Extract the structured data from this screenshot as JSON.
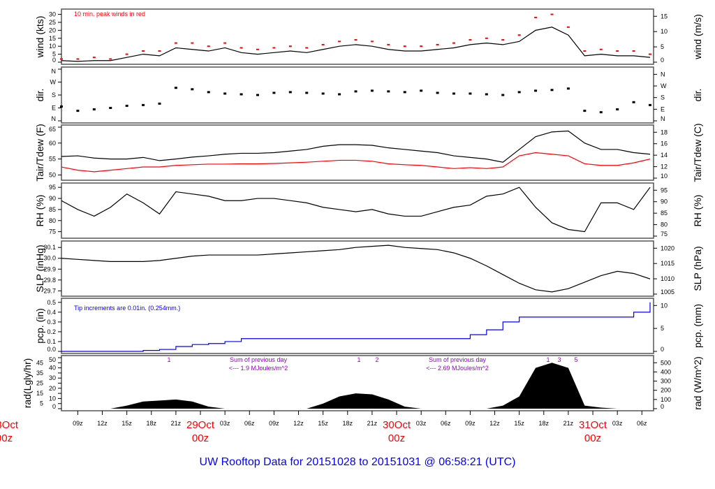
{
  "title": "UW Rooftop Data for 20151028  to  20151031 @ 06:58:21  (UTC)",
  "x": [
    "28Oct 07z",
    "28Oct 09z",
    "28Oct 11z",
    "28Oct 13z",
    "28Oct 15z",
    "28Oct 17z",
    "28Oct 19z",
    "28Oct 21z",
    "28Oct 23z",
    "29Oct 01z",
    "29Oct 03z",
    "29Oct 05z",
    "29Oct 07z",
    "29Oct 09z",
    "29Oct 11z",
    "29Oct 13z",
    "29Oct 15z",
    "29Oct 17z",
    "29Oct 19z",
    "29Oct 21z",
    "29Oct 23z",
    "30Oct 01z",
    "30Oct 03z",
    "30Oct 05z",
    "30Oct 07z",
    "30Oct 09z",
    "30Oct 11z",
    "30Oct 13z",
    "30Oct 15z",
    "30Oct 17z",
    "30Oct 19z",
    "30Oct 21z",
    "30Oct 23z",
    "31Oct 01z",
    "31Oct 03z",
    "31Oct 05z",
    "31Oct 07z"
  ],
  "x_ticks": [
    "09z",
    "12z",
    "15z",
    "18z",
    "21z",
    "",
    "03z",
    "06z",
    "09z",
    "12z",
    "15z",
    "18z",
    "21z",
    "",
    "03z",
    "06z",
    "09z",
    "12z",
    "15z",
    "18z",
    "21z",
    "",
    "03z",
    "06z"
  ],
  "day_labels": [
    {
      "date": "28Oct",
      "hour": "00z"
    },
    {
      "date": "29Oct",
      "hour": "00z"
    },
    {
      "date": "30Oct",
      "hour": "00z"
    },
    {
      "date": "31Oct",
      "hour": "00z"
    }
  ],
  "colors": {
    "series": "#000000",
    "peak": "#ff0000",
    "dew": "#ff0000",
    "precip": "#0000ff",
    "annotation": "#9900cc",
    "day_label": "#ff0000",
    "title": "#0000ff"
  },
  "chart_data": [
    {
      "type": "line",
      "ylabel": "wind (kts)",
      "ylabel_right": "wind (m/s)",
      "ylim": [
        0,
        32
      ],
      "yticks": [
        "0",
        "5",
        "10",
        "15",
        "20",
        "25",
        "30"
      ],
      "yticks_right": [
        "0",
        "5",
        "10",
        "15"
      ],
      "note": "10 min. peak winds in red",
      "series": [
        {
          "values": [
            1,
            0.5,
            1,
            1,
            3,
            5,
            4,
            9,
            8,
            7,
            9,
            6,
            5,
            6,
            7,
            6,
            8,
            10,
            11,
            10,
            8,
            7,
            7,
            8,
            9,
            11,
            12,
            11,
            13,
            20,
            22,
            17,
            4,
            5,
            4,
            4,
            3
          ]
        },
        {
          "values": [
            2,
            2,
            3,
            2,
            5,
            7,
            7,
            12,
            12,
            10,
            12,
            9,
            8,
            9,
            10,
            9,
            11,
            13,
            14,
            13,
            11,
            10,
            10,
            11,
            12,
            14,
            15,
            14,
            17,
            28,
            30,
            22,
            7,
            8,
            7,
            7,
            5
          ]
        }
      ]
    },
    {
      "type": "scatter",
      "ylabel": "dir.",
      "ylabel_right": "dir.",
      "ylim": [
        0,
        360
      ],
      "yticks": [
        "N",
        "E",
        "S",
        "W",
        "N"
      ],
      "yticks_right": [
        "N",
        "E",
        "S",
        "W",
        "N"
      ],
      "values": [
        100,
        70,
        80,
        90,
        105,
        110,
        120,
        230,
        220,
        200,
        190,
        185,
        180,
        195,
        200,
        195,
        190,
        185,
        205,
        210,
        205,
        200,
        210,
        195,
        190,
        190,
        185,
        180,
        200,
        210,
        215,
        225,
        70,
        60,
        80,
        130,
        110
      ]
    },
    {
      "type": "line",
      "ylabel": "Tair/Tdew (F)",
      "ylabel_right": "Tair/Tdew (C)",
      "ylim": [
        49,
        65
      ],
      "yticks": [
        "50",
        "55",
        "60",
        "65"
      ],
      "yticks_right": [
        "10",
        "12",
        "14",
        "16",
        "18"
      ],
      "series": [
        {
          "values": [
            55.8,
            56,
            55.3,
            55,
            55,
            55.5,
            54.5,
            55,
            55.6,
            56,
            56.5,
            56.8,
            56.8,
            57,
            57.5,
            58,
            59,
            59.5,
            59.5,
            59.3,
            58.5,
            58,
            57.5,
            57,
            56,
            55.5,
            55,
            54,
            58,
            62,
            63.5,
            63.8,
            60,
            58,
            58,
            57,
            56.5
          ]
        },
        {
          "values": [
            52.5,
            51.5,
            51,
            51.5,
            52,
            52.5,
            52.5,
            53,
            53.2,
            53.4,
            53.4,
            53.5,
            53.5,
            53.6,
            53.8,
            54,
            54.3,
            54.6,
            54.6,
            54.3,
            53.5,
            53.2,
            53,
            52.5,
            52,
            52.3,
            52,
            52.5,
            56,
            57,
            56.5,
            56,
            53.5,
            53,
            53,
            53.8,
            55
          ]
        }
      ]
    },
    {
      "type": "line",
      "ylabel": "RH (%)",
      "ylabel_right": "RH (%)",
      "ylim": [
        73,
        96
      ],
      "yticks": [
        "75",
        "80",
        "85",
        "90",
        "95"
      ],
      "yticks_right": [
        "75",
        "80",
        "85",
        "90",
        "95"
      ],
      "values": [
        89,
        85,
        82,
        86,
        92,
        88,
        83,
        93,
        92,
        91,
        89,
        89,
        90,
        90,
        89,
        88,
        86,
        85,
        84,
        85,
        83,
        82,
        82,
        84,
        86,
        87,
        91,
        92,
        95,
        86,
        79,
        76,
        75,
        88,
        88,
        85,
        95
      ]
    },
    {
      "type": "line",
      "ylabel": "SLP (inHg)",
      "ylabel_right": "SLP (hPa)",
      "ylim": [
        29.67,
        30.14
      ],
      "yticks": [
        "29.7",
        "29.8",
        "29.9",
        "30.0",
        "30.1"
      ],
      "yticks_right": [
        "1005",
        "1010",
        "1015",
        "1020"
      ],
      "values": [
        30.0,
        29.99,
        29.98,
        29.97,
        29.97,
        29.97,
        29.98,
        30.0,
        30.02,
        30.03,
        30.03,
        30.03,
        30.03,
        30.04,
        30.05,
        30.06,
        30.07,
        30.08,
        30.1,
        30.11,
        30.12,
        30.1,
        30.09,
        30.08,
        30.05,
        30.0,
        29.93,
        29.85,
        29.77,
        29.71,
        29.69,
        29.72,
        29.78,
        29.84,
        29.88,
        29.86,
        29.81
      ]
    },
    {
      "type": "line",
      "ylabel": "pcp. (in)",
      "ylabel_right": "pcp. (mm)",
      "ylim": [
        0,
        0.52
      ],
      "yticks": [
        "0.0",
        "0.1",
        "0.2",
        "0.3",
        "0.4",
        "0.5"
      ],
      "yticks_right": [
        "0",
        "5",
        "10"
      ],
      "note": "Tip increments are 0.01in. (0.254mm.)",
      "values": [
        0,
        0,
        0,
        0,
        0,
        0.01,
        0.02,
        0.05,
        0.07,
        0.08,
        0.1,
        0.13,
        0.13,
        0.13,
        0.13,
        0.13,
        0.13,
        0.13,
        0.13,
        0.13,
        0.13,
        0.13,
        0.13,
        0.13,
        0.13,
        0.17,
        0.22,
        0.3,
        0.35,
        0.35,
        0.35,
        0.35,
        0.35,
        0.35,
        0.35,
        0.4,
        0.5
      ]
    },
    {
      "type": "area",
      "ylabel": "rad(Lgly/hr)",
      "ylabel_right": "rad (W/m^2)",
      "ylim": [
        0,
        50
      ],
      "yticks": [
        "0",
        "5",
        "10",
        "15",
        "20",
        "25",
        "30",
        "35",
        "40",
        "45",
        "50"
      ],
      "yticks_right": [
        "0",
        "100",
        "200",
        "300",
        "400",
        "500"
      ],
      "values": [
        0,
        0,
        0,
        0,
        3,
        7,
        8,
        9,
        7,
        2,
        0,
        0,
        0,
        0,
        0,
        0,
        5,
        12,
        15,
        14,
        9,
        2,
        0,
        0,
        0,
        0,
        0,
        3,
        12,
        40,
        45,
        40,
        3,
        1,
        0,
        0,
        0
      ],
      "annotations": [
        {
          "text": "1"
        },
        {
          "text": "Sum of previous day"
        },
        {
          "text": "<--- 1.9 MJoules/m^2"
        },
        {
          "text": "1"
        },
        {
          "text": "2"
        },
        {
          "text": "Sum of previous day"
        },
        {
          "text": "<--- 2.69 MJoules/m^2"
        },
        {
          "text": "1"
        },
        {
          "text": "3"
        },
        {
          "text": "5"
        }
      ]
    }
  ]
}
